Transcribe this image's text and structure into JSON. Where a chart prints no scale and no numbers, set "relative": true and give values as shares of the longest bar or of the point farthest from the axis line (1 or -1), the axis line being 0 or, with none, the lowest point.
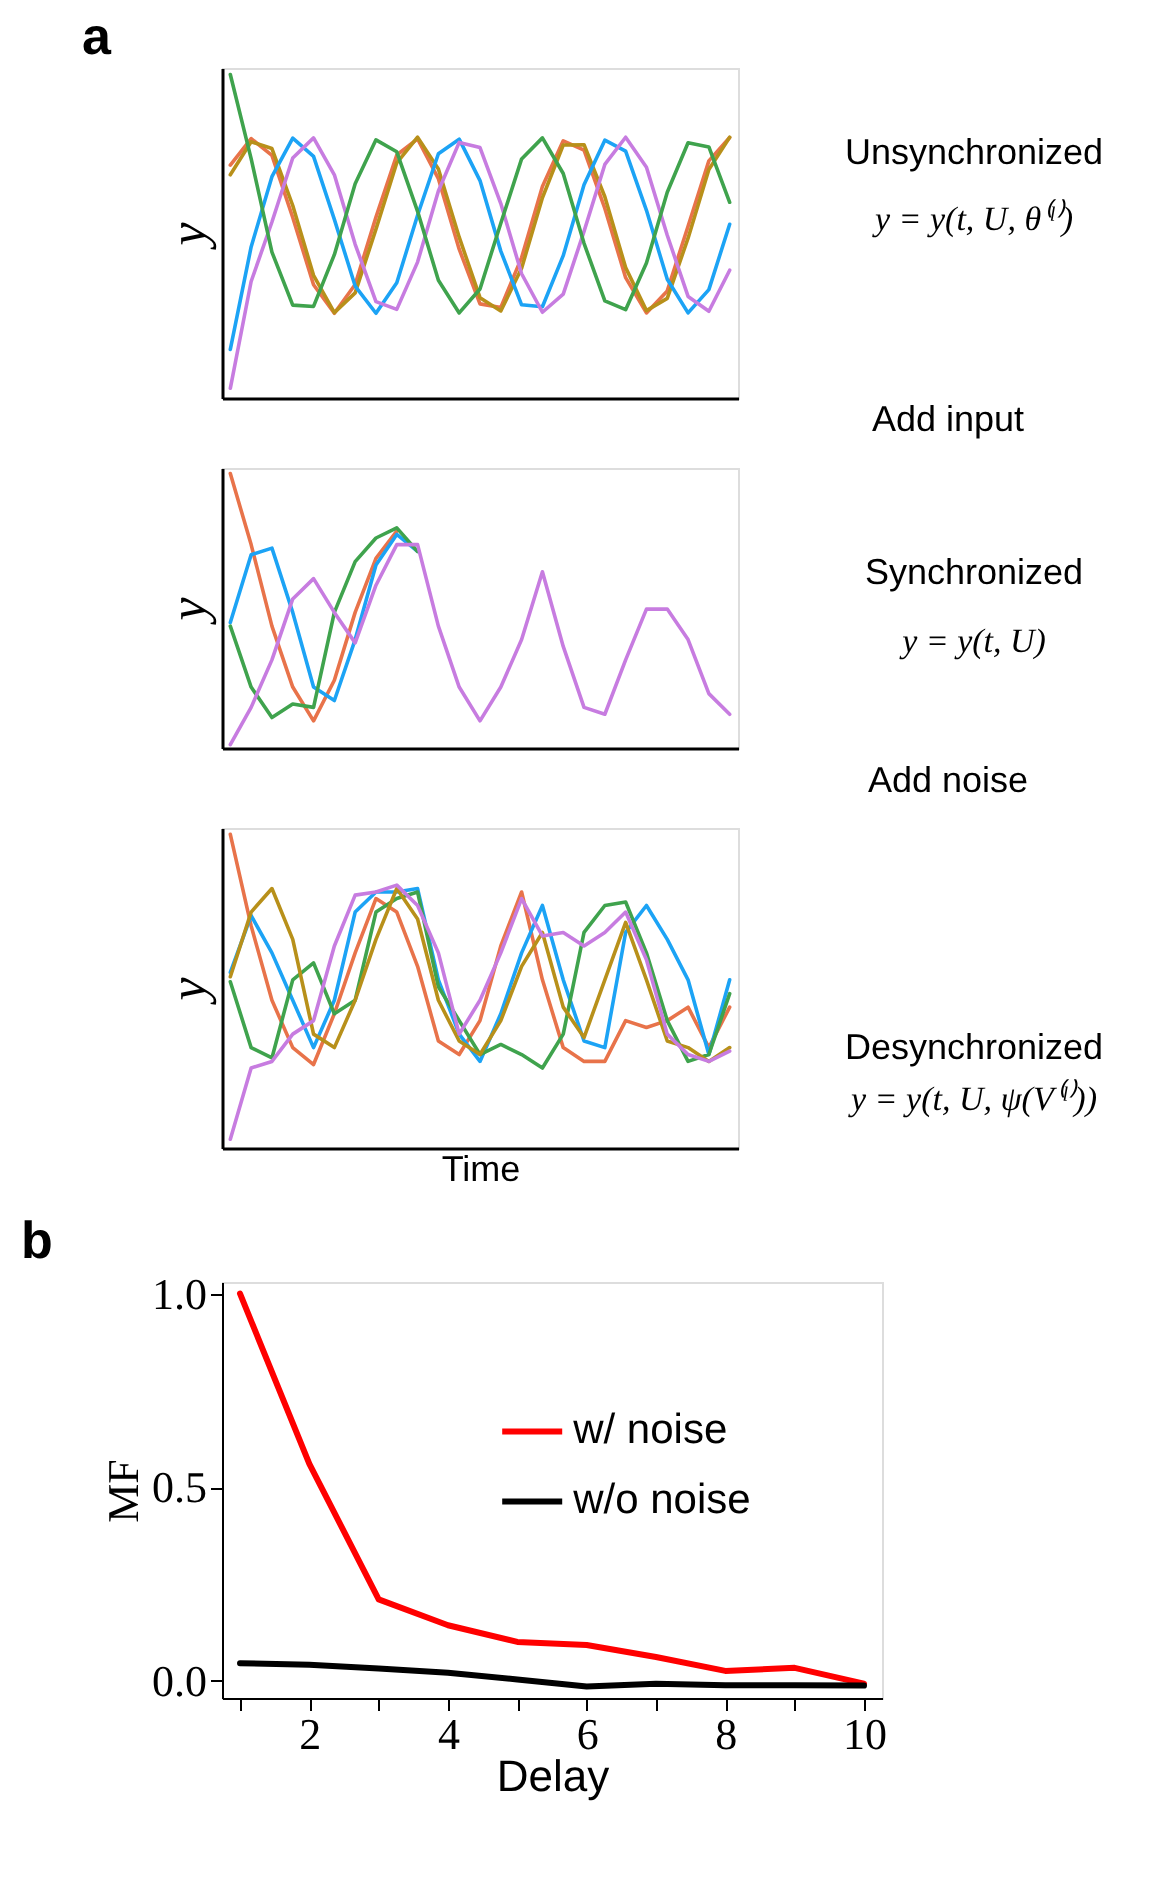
{
  "chart_data": [
    {
      "type": "line",
      "title": "a",
      "ylabel": "y",
      "relative": true,
      "line_style": "solid",
      "tick_labels": false,
      "annotations": [
        "Unsynchronized",
        "y = y(t, U, θ⁽ˡ⁾)",
        "Add input"
      ],
      "categories": [
        null,
        null,
        null,
        null,
        null,
        null,
        null,
        null,
        null,
        null,
        null,
        null,
        null,
        null,
        null,
        null,
        null,
        null,
        null,
        null,
        null,
        null,
        null,
        null,
        null
      ],
      "series": [
        {
          "color": "#e8734a",
          "values": [
            0.72,
            0.802,
            0.75,
            0.558,
            0.35,
            0.262,
            0.351,
            0.559,
            0.751,
            0.801,
            0.678,
            0.46,
            0.291,
            0.28,
            0.434,
            0.654,
            0.795,
            0.766,
            0.586,
            0.372,
            0.263,
            0.331,
            0.531,
            0.733,
            0.805
          ]
        },
        {
          "color": "#b8901a",
          "values": [
            0.69,
            0.792,
            0.771,
            0.595,
            0.379,
            0.264,
            0.325,
            0.522,
            0.727,
            0.806,
            0.708,
            0.497,
            0.31,
            0.269,
            0.401,
            0.619,
            0.782,
            0.783,
            0.622,
            0.403,
            0.27,
            0.308,
            0.494,
            0.706,
            0.806
          ]
        },
        {
          "color": "#1ca3f5",
          "values": [
            0.15,
            0.467,
            0.684,
            0.803,
            0.747,
            0.552,
            0.346,
            0.262,
            0.356,
            0.565,
            0.755,
            0.8,
            0.672,
            0.454,
            0.288,
            0.282,
            0.44,
            0.659,
            0.797,
            0.763,
            0.58,
            0.367,
            0.263,
            0.335,
            0.537
          ]
        },
        {
          "color": "#c77ce0",
          "values": [
            0.03,
            0.36,
            0.544,
            0.742,
            0.804,
            0.69,
            0.475,
            0.298,
            0.274,
            0.42,
            0.64,
            0.79,
            0.774,
            0.601,
            0.384,
            0.265,
            0.321,
            0.515,
            0.722,
            0.806,
            0.713,
            0.503,
            0.314,
            0.268,
            0.395
          ]
        },
        {
          "color": "#3fa34d",
          "values": [
            1.0,
            0.74,
            0.451,
            0.287,
            0.283,
            0.443,
            0.662,
            0.798,
            0.761,
            0.577,
            0.364,
            0.263,
            0.337,
            0.54,
            0.739,
            0.804,
            0.694,
            0.478,
            0.3,
            0.273,
            0.417,
            0.636,
            0.789,
            0.776,
            0.605
          ]
        }
      ]
    },
    {
      "type": "line",
      "ylabel": "y",
      "relative": true,
      "line_style": "solid",
      "tick_labels": false,
      "annotations": [
        "Synchronized",
        "y = y(t, U)",
        "Add noise"
      ],
      "categories": [
        null,
        null,
        null,
        null,
        null,
        null,
        null,
        null,
        null,
        null,
        null,
        null,
        null,
        null,
        null,
        null,
        null,
        null,
        null,
        null,
        null,
        null,
        null,
        null,
        null
      ],
      "series": [
        {
          "color": "#e8734a",
          "values": [
            1.0,
            0.741,
            0.444,
            0.222,
            0.099,
            0.247,
            0.494,
            0.691,
            0.79,
            null,
            null,
            null,
            null,
            null,
            null,
            null,
            null,
            null,
            null,
            null,
            null,
            null,
            null,
            null,
            null
          ]
        },
        {
          "color": "#1ca3f5",
          "values": [
            0.457,
            0.704,
            0.728,
            0.494,
            0.222,
            0.173,
            0.395,
            0.667,
            0.778,
            0.716,
            null,
            null,
            null,
            null,
            null,
            null,
            null,
            null,
            null,
            null,
            null,
            null,
            null,
            null,
            null
          ]
        },
        {
          "color": "#3fa34d",
          "values": [
            0.444,
            0.222,
            0.111,
            0.16,
            0.148,
            0.494,
            0.679,
            0.765,
            0.802,
            0.716,
            null,
            null,
            null,
            null,
            null,
            null,
            null,
            null,
            null,
            null,
            null,
            null,
            null,
            null,
            null
          ]
        },
        {
          "color": "#c77ce0",
          "values": [
            0.012,
            0.148,
            0.321,
            0.543,
            0.617,
            0.494,
            0.383,
            0.593,
            0.741,
            0.741,
            0.444,
            0.222,
            0.099,
            0.222,
            0.395,
            0.642,
            0.37,
            0.148,
            0.123,
            0.321,
            0.506,
            0.506,
            0.395,
            0.198,
            0.123
          ]
        }
      ]
    },
    {
      "type": "line",
      "ylabel": "y",
      "xlabel": "Time",
      "relative": true,
      "line_style": "solid",
      "tick_labels": false,
      "annotations": [
        "Desynchronized",
        "y = y(t, U, ψ(V⁽ˡ⁾))"
      ],
      "categories": [
        null,
        null,
        null,
        null,
        null,
        null,
        null,
        null,
        null,
        null,
        null,
        null,
        null,
        null,
        null,
        null,
        null,
        null,
        null,
        null,
        null,
        null,
        null,
        null,
        null
      ],
      "series": [
        {
          "color": "#e8734a",
          "values": [
            1.0,
            0.708,
            0.471,
            0.32,
            0.266,
            0.428,
            0.622,
            0.795,
            0.752,
            0.579,
            0.341,
            0.298,
            0.406,
            0.644,
            0.816,
            0.536,
            0.32,
            0.276,
            0.276,
            0.406,
            0.384,
            0.406,
            0.449,
            0.32,
            0.449
          ]
        },
        {
          "color": "#1ca3f5",
          "values": [
            0.56,
            0.741,
            0.622,
            0.471,
            0.32,
            0.471,
            0.752,
            0.816,
            0.816,
            0.827,
            0.536,
            0.363,
            0.276,
            0.428,
            0.622,
            0.773,
            0.536,
            0.341,
            0.32,
            0.687,
            0.773,
            0.665,
            0.536,
            0.298,
            0.536
          ]
        },
        {
          "color": "#3fa34d",
          "values": [
            0.53,
            0.32,
            0.287,
            0.536,
            0.59,
            0.428,
            0.471,
            0.752,
            0.795,
            0.816,
            0.514,
            0.406,
            0.298,
            0.33,
            0.298,
            0.255,
            0.363,
            0.687,
            0.773,
            0.784,
            0.622,
            0.406,
            0.276,
            0.298,
            0.492
          ]
        },
        {
          "color": "#b8901a",
          "values": [
            0.546,
            0.752,
            0.827,
            0.665,
            0.363,
            0.32,
            0.471,
            0.665,
            0.827,
            0.73,
            0.471,
            0.341,
            0.298,
            0.406,
            0.579,
            0.687,
            0.449,
            0.352,
            0.536,
            0.719,
            0.536,
            0.341,
            0.32,
            0.276,
            0.32
          ]
        },
        {
          "color": "#c77ce0",
          "values": [
            0.028,
            0.255,
            0.276,
            0.363,
            0.406,
            0.644,
            0.806,
            0.816,
            0.838,
            0.773,
            0.622,
            0.363,
            0.471,
            0.622,
            0.795,
            0.676,
            0.687,
            0.644,
            0.687,
            0.752,
            0.6,
            0.363,
            0.298,
            0.276,
            0.309
          ]
        }
      ]
    },
    {
      "type": "line",
      "title": "b",
      "xlabel": "Delay",
      "ylabel": "MF",
      "legend": "right",
      "xlim": [
        0.74,
        10.26
      ],
      "ylim": [
        -0.045,
        1.03
      ],
      "xticks": [
        {
          "value": 1,
          "label": null
        },
        2,
        {
          "value": 3,
          "label": null
        },
        4,
        {
          "value": 5,
          "label": null
        },
        6,
        {
          "value": 7,
          "label": null
        },
        8,
        {
          "value": 9,
          "label": null
        },
        10
      ],
      "yticks": [
        {
          "value": 0,
          "label": "0.0"
        },
        {
          "value": 0.5,
          "label": "0.5"
        },
        {
          "value": 1,
          "label": "1.0"
        }
      ],
      "series": [
        {
          "name": "w/ noise",
          "color": "#ff0000",
          "x": [
            1,
            2,
            3,
            4,
            5,
            6,
            7,
            8,
            9,
            10
          ],
          "values": [
            1.0,
            0.56,
            0.21,
            0.143,
            0.1,
            0.092,
            0.061,
            0.025,
            0.033,
            -0.008
          ]
        },
        {
          "name": "w/o noise",
          "color": "#000000",
          "x": [
            1,
            2,
            3,
            4,
            5,
            6,
            7,
            8,
            9,
            10
          ],
          "values": [
            0.045,
            0.041,
            0.031,
            0.02,
            0.003,
            -0.015,
            -0.008,
            -0.012,
            -0.012,
            -0.013
          ]
        }
      ]
    }
  ]
}
